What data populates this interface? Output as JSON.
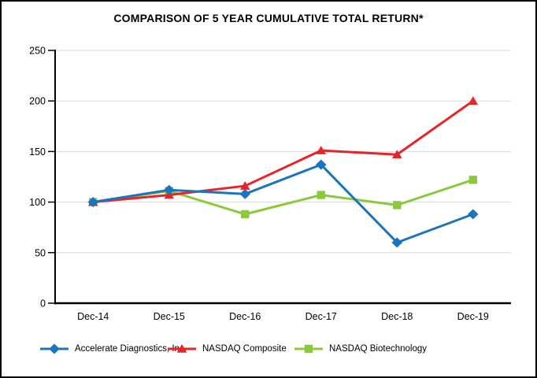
{
  "chart_data": {
    "type": "line",
    "title": "COMPARISON OF 5 YEAR CUMULATIVE TOTAL RETURN*",
    "categories": [
      "Dec-14",
      "Dec-15",
      "Dec-16",
      "Dec-17",
      "Dec-18",
      "Dec-19"
    ],
    "series": [
      {
        "name": "Accelerate Diagnostics, Inc.",
        "color": "#1B75BC",
        "marker": "diamond",
        "values": [
          100,
          112,
          108,
          137,
          60,
          88
        ]
      },
      {
        "name": "NASDAQ Composite",
        "color": "#E62528",
        "marker": "triangle",
        "values": [
          100,
          107,
          116,
          151,
          147,
          200
        ]
      },
      {
        "name": "NASDAQ Biotechnology",
        "color": "#8CC83C",
        "marker": "square",
        "values": [
          100,
          111,
          88,
          107,
          97,
          122
        ]
      }
    ],
    "ylim": [
      0,
      250
    ],
    "yticks": [
      0,
      50,
      100,
      150,
      200,
      250
    ],
    "grid": true,
    "gridline_color": "#D9D9D9",
    "axis_color": "#000000",
    "legend_position": "bottom"
  }
}
